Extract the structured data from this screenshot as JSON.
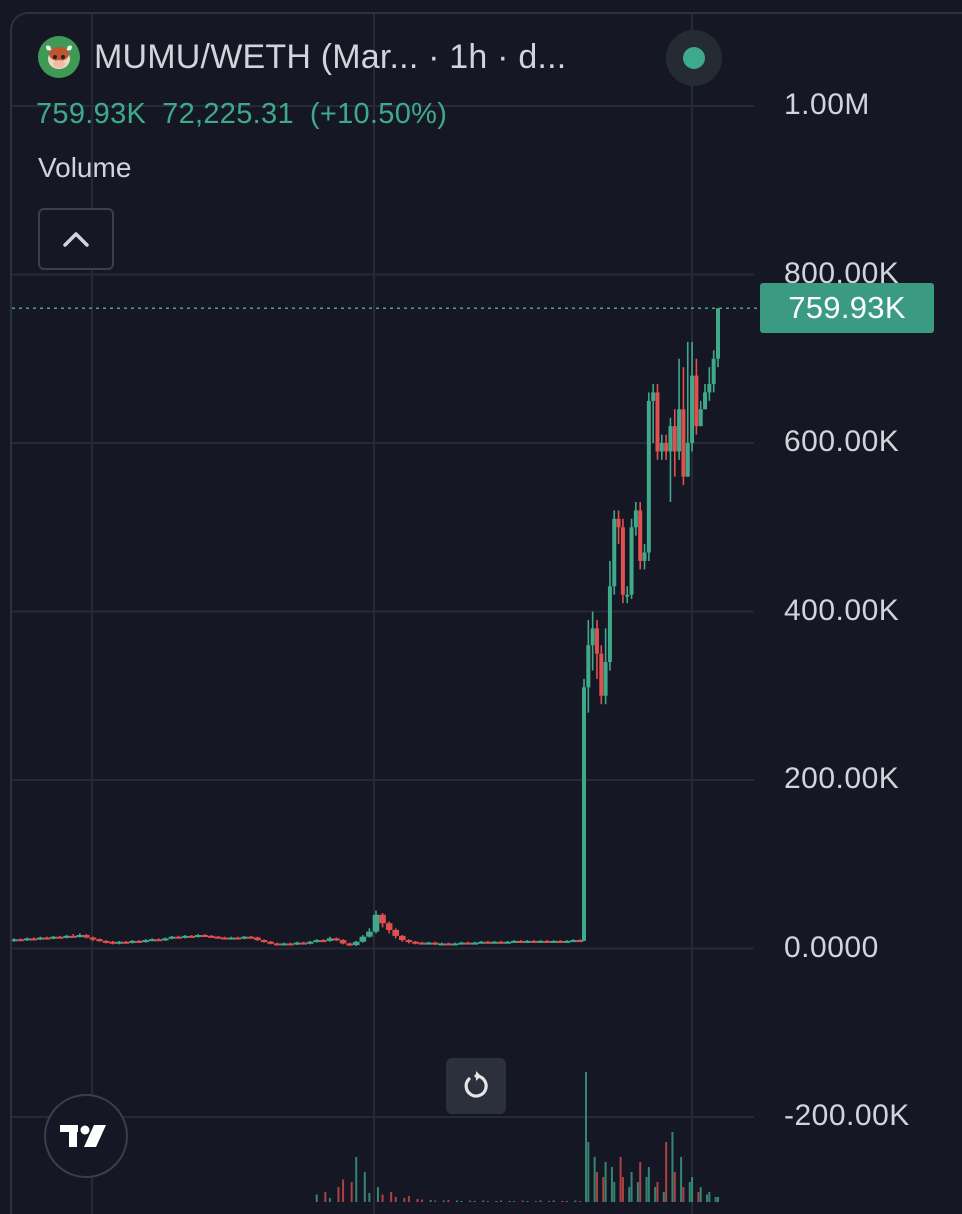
{
  "header": {
    "symbol_title": "MUMU/WETH (Mar...  · 1h · d...",
    "last_price": "759.93K",
    "change": "72,225.31",
    "change_pct": "(+10.50%)",
    "volume_label": "Volume"
  },
  "price_tag": "759.93K",
  "colors": {
    "up": "#3fa98b",
    "down": "#e0504f",
    "background": "#151824",
    "grid": "#262a36"
  },
  "icons": {
    "logo": "bull-mascot-icon",
    "collapse": "chevron-up-icon",
    "status": "live-status-dot-icon",
    "reset": "reset-rotate-icon",
    "brand": "tradingview-logo-icon"
  },
  "chart_data": {
    "type": "candlestick",
    "ylim": [
      -200000,
      1000000
    ],
    "y_ticks": [
      {
        "value": 1000000,
        "label": "1.00M"
      },
      {
        "value": 800000,
        "label": "800.00K"
      },
      {
        "value": 600000,
        "label": "600.00K"
      },
      {
        "value": 400000,
        "label": "400.00K"
      },
      {
        "value": 200000,
        "label": "200.00K"
      },
      {
        "value": 0,
        "label": "0.0000"
      },
      {
        "value": -200000,
        "label": "-200.00K"
      }
    ],
    "last_value": 759930,
    "candles": [
      [
        10000,
        11000,
        8000,
        12000
      ],
      [
        11000,
        10000,
        9000,
        12000
      ],
      [
        10000,
        12000,
        9000,
        13000
      ],
      [
        12000,
        11000,
        10000,
        13000
      ],
      [
        11000,
        13000,
        10000,
        14000
      ],
      [
        13000,
        12000,
        11000,
        14000
      ],
      [
        12000,
        14000,
        11000,
        15000
      ],
      [
        14000,
        13000,
        12000,
        15000
      ],
      [
        13000,
        15000,
        12000,
        16000
      ],
      [
        15000,
        14000,
        13000,
        17000
      ],
      [
        14000,
        16000,
        13000,
        18000
      ],
      [
        16000,
        13000,
        12000,
        17000
      ],
      [
        13000,
        11000,
        9000,
        14000
      ],
      [
        11000,
        9000,
        8000,
        12000
      ],
      [
        9000,
        8000,
        6000,
        10000
      ],
      [
        8000,
        6000,
        5000,
        9000
      ],
      [
        6000,
        8000,
        5000,
        9000
      ],
      [
        8000,
        7000,
        6000,
        9000
      ],
      [
        7000,
        9000,
        6000,
        10000
      ],
      [
        9000,
        8000,
        7000,
        10000
      ],
      [
        8000,
        10000,
        7000,
        11000
      ],
      [
        10000,
        11000,
        9000,
        12000
      ],
      [
        11000,
        10000,
        9000,
        12000
      ],
      [
        10000,
        12000,
        9000,
        13000
      ],
      [
        12000,
        14000,
        11000,
        15000
      ],
      [
        14000,
        13000,
        12000,
        15000
      ],
      [
        13000,
        15000,
        12000,
        16000
      ],
      [
        15000,
        14000,
        13000,
        16000
      ],
      [
        14000,
        16000,
        13000,
        17000
      ],
      [
        16000,
        15000,
        14000,
        17000
      ],
      [
        15000,
        14000,
        13000,
        16000
      ],
      [
        14000,
        13000,
        12000,
        15000
      ],
      [
        13000,
        12000,
        11000,
        14000
      ],
      [
        12000,
        13000,
        11000,
        14000
      ],
      [
        13000,
        12000,
        11000,
        14000
      ],
      [
        12000,
        14000,
        11000,
        15000
      ],
      [
        14000,
        13000,
        12000,
        15000
      ],
      [
        13000,
        10000,
        9000,
        14000
      ],
      [
        10000,
        8000,
        7000,
        11000
      ],
      [
        8000,
        6000,
        5000,
        9000
      ],
      [
        6000,
        5000,
        4000,
        7000
      ],
      [
        5000,
        6000,
        4000,
        7000
      ],
      [
        6000,
        5000,
        4000,
        7000
      ],
      [
        5000,
        7000,
        4000,
        8000
      ],
      [
        7000,
        6000,
        5000,
        8000
      ],
      [
        6000,
        8000,
        5000,
        9000
      ],
      [
        8000,
        10000,
        7000,
        11000
      ],
      [
        10000,
        9000,
        8000,
        11000
      ],
      [
        9000,
        12000,
        8000,
        14000
      ],
      [
        12000,
        10000,
        9000,
        13000
      ],
      [
        10000,
        6000,
        5000,
        11000
      ],
      [
        6000,
        4000,
        3000,
        7000
      ],
      [
        4000,
        8000,
        3000,
        9000
      ],
      [
        8000,
        14000,
        7000,
        16000
      ],
      [
        14000,
        20000,
        13000,
        24000
      ],
      [
        20000,
        40000,
        18000,
        45000
      ],
      [
        40000,
        30000,
        25000,
        42000
      ],
      [
        30000,
        22000,
        18000,
        32000
      ],
      [
        22000,
        15000,
        12000,
        24000
      ],
      [
        15000,
        10000,
        8000,
        16000
      ],
      [
        10000,
        8000,
        6000,
        11000
      ],
      [
        8000,
        7000,
        5000,
        9000
      ],
      [
        7000,
        6000,
        5000,
        8000
      ],
      [
        6000,
        7000,
        5000,
        8000
      ],
      [
        7000,
        5000,
        4000,
        8000
      ],
      [
        5000,
        6000,
        4000,
        7000
      ],
      [
        6000,
        5000,
        4000,
        7000
      ],
      [
        5000,
        6000,
        4000,
        7000
      ],
      [
        6000,
        7000,
        5000,
        8000
      ],
      [
        7000,
        6000,
        5000,
        8000
      ],
      [
        6000,
        7000,
        5000,
        8000
      ],
      [
        7000,
        8000,
        6000,
        9000
      ],
      [
        8000,
        7000,
        6000,
        9000
      ],
      [
        7000,
        8000,
        6000,
        9000
      ],
      [
        8000,
        7000,
        6000,
        9000
      ],
      [
        7000,
        8000,
        6000,
        9000
      ],
      [
        8000,
        9000,
        7000,
        10000
      ],
      [
        9000,
        8000,
        7000,
        10000
      ],
      [
        8000,
        9000,
        7000,
        10000
      ],
      [
        9000,
        8000,
        7000,
        10000
      ],
      [
        8000,
        9000,
        7000,
        10000
      ],
      [
        9000,
        8000,
        7000,
        10000
      ],
      [
        8000,
        9000,
        7000,
        10000
      ],
      [
        9000,
        8000,
        7000,
        10000
      ],
      [
        8000,
        9000,
        7000,
        10000
      ],
      [
        9000,
        10000,
        8000,
        11000
      ],
      [
        10000,
        9000,
        8000,
        11000
      ],
      [
        9000,
        310000,
        9000,
        320000
      ],
      [
        310000,
        360000,
        280000,
        390000
      ],
      [
        360000,
        380000,
        330000,
        400000
      ],
      [
        380000,
        350000,
        320000,
        390000
      ],
      [
        350000,
        300000,
        290000,
        360000
      ],
      [
        300000,
        340000,
        290000,
        380000
      ],
      [
        340000,
        430000,
        330000,
        460000
      ],
      [
        430000,
        510000,
        420000,
        520000
      ],
      [
        510000,
        500000,
        480000,
        520000
      ],
      [
        500000,
        420000,
        410000,
        510000
      ],
      [
        420000,
        420000,
        410000,
        430000
      ],
      [
        420000,
        500000,
        415000,
        510000
      ],
      [
        500000,
        520000,
        490000,
        530000
      ],
      [
        520000,
        460000,
        450000,
        530000
      ],
      [
        460000,
        470000,
        450000,
        480000
      ],
      [
        470000,
        650000,
        460000,
        660000
      ],
      [
        650000,
        660000,
        600000,
        670000
      ],
      [
        660000,
        590000,
        580000,
        670000
      ],
      [
        590000,
        600000,
        580000,
        610000
      ],
      [
        600000,
        590000,
        580000,
        610000
      ],
      [
        590000,
        620000,
        530000,
        630000
      ],
      [
        620000,
        590000,
        560000,
        640000
      ],
      [
        590000,
        640000,
        580000,
        700000
      ],
      [
        640000,
        560000,
        550000,
        690000
      ],
      [
        560000,
        600000,
        560000,
        720000
      ],
      [
        600000,
        680000,
        590000,
        720000
      ],
      [
        680000,
        620000,
        610000,
        700000
      ],
      [
        620000,
        640000,
        620000,
        650000
      ],
      [
        640000,
        660000,
        640000,
        670000
      ],
      [
        660000,
        670000,
        650000,
        690000
      ],
      [
        670000,
        700000,
        660000,
        710000
      ],
      [
        700000,
        759930,
        690000,
        760000
      ]
    ],
    "volumes": [
      0,
      0,
      0,
      0,
      0,
      0,
      0,
      0,
      0,
      0,
      0,
      0,
      0,
      0,
      0,
      0,
      0,
      0,
      0,
      0,
      0,
      0,
      0,
      0,
      0,
      0,
      0,
      0,
      0,
      0,
      0,
      0,
      0,
      0,
      0,
      0,
      0,
      0,
      0,
      0,
      0,
      0,
      0,
      0,
      0,
      0,
      15000,
      20000,
      8000,
      30000,
      45000,
      40000,
      90000,
      60000,
      18000,
      30000,
      15000,
      20000,
      10000,
      8000,
      12000,
      6000,
      5000,
      4000,
      3000,
      3000,
      4000,
      3000,
      2000,
      3000,
      2000,
      3000,
      2000,
      2000,
      3000,
      2000,
      2000,
      3000,
      2000,
      2000,
      3000,
      2000,
      3000,
      2000,
      2000,
      3000,
      2000,
      260000,
      120000,
      90000,
      60000,
      50000,
      80000,
      70000,
      40000,
      90000,
      50000,
      30000,
      60000,
      40000,
      80000,
      50000,
      70000,
      30000,
      40000,
      20000,
      120000,
      140000,
      60000,
      90000,
      30000,
      40000,
      50000,
      20000,
      30000,
      15000,
      20000,
      10000,
      10000
    ]
  }
}
